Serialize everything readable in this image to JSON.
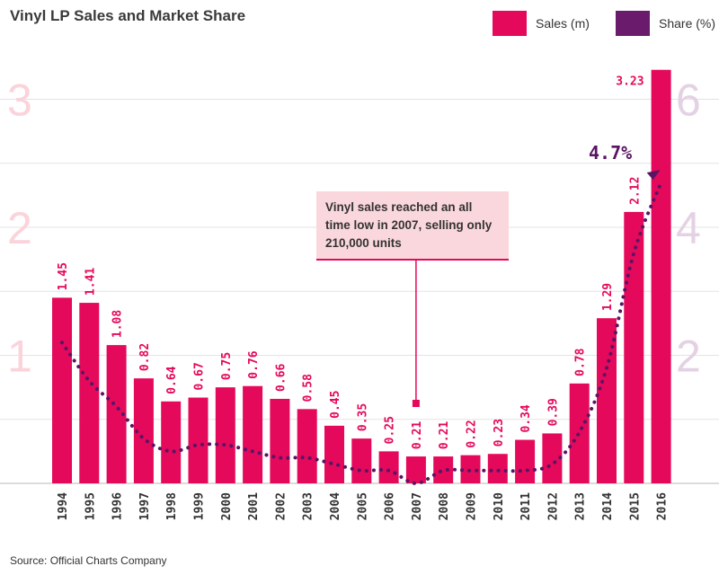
{
  "title": "Vinyl LP Sales and Market Share",
  "legend": [
    {
      "label": "Sales (m)",
      "color": "#e4095a"
    },
    {
      "label": "Share (%)",
      "color": "#6b1b6b"
    }
  ],
  "source": "Source: Official Charts Company",
  "annotation": {
    "text": "Vinyl sales reached an all time low in 2007, selling only 210,000 units",
    "share_label": "4.7%"
  },
  "colors": {
    "bar": "#e4095a",
    "line": "#5a1464",
    "left_axis": "#fbd3db",
    "right_axis": "#e4d2e4",
    "grid": "#e3e3e3"
  },
  "chart_data": {
    "type": "bar",
    "title": "Vinyl LP Sales and Market Share",
    "categories": [
      "1994",
      "1995",
      "1996",
      "1997",
      "1998",
      "1999",
      "2000",
      "2001",
      "2002",
      "2003",
      "2004",
      "2005",
      "2006",
      "2007",
      "2008",
      "2009",
      "2010",
      "2011",
      "2012",
      "2013",
      "2014",
      "2015",
      "2016"
    ],
    "series": [
      {
        "name": "Sales (m)",
        "type": "bar",
        "axis": "left",
        "values": [
          1.45,
          1.41,
          1.08,
          0.82,
          0.64,
          0.67,
          0.75,
          0.76,
          0.66,
          0.58,
          0.45,
          0.35,
          0.25,
          0.21,
          0.21,
          0.22,
          0.23,
          0.34,
          0.39,
          0.78,
          1.29,
          2.12,
          3.23
        ],
        "labels": [
          "1.45",
          "1.41",
          "1.08",
          "0.82",
          "0.64",
          "0.67",
          "0.75",
          "0.76",
          "0.66",
          "0.58",
          "0.45",
          "0.35",
          "0.25",
          "0.21",
          "0.21",
          "0.22",
          "0.23",
          "0.34",
          "0.39",
          "0.78",
          "1.29",
          "2.12",
          "3.23"
        ]
      },
      {
        "name": "Share (%)",
        "type": "line",
        "axis": "right",
        "style": "dotted",
        "values": [
          2.2,
          1.6,
          1.2,
          0.7,
          0.5,
          0.6,
          0.6,
          0.5,
          0.4,
          0.4,
          0.3,
          0.2,
          0.2,
          0.0,
          0.2,
          0.2,
          0.2,
          0.2,
          0.3,
          0.8,
          1.8,
          3.6,
          4.7
        ]
      }
    ],
    "left_axis": {
      "ticks": [
        1,
        2,
        3
      ],
      "range": [
        0,
        3.2
      ]
    },
    "right_axis": {
      "ticks": [
        2,
        4,
        6
      ],
      "range": [
        0,
        6.4
      ]
    },
    "grid": true,
    "legend_position": "top-right"
  }
}
